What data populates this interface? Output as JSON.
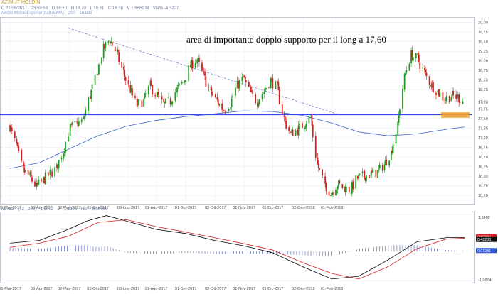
{
  "header": {
    "title": "AZIMUT HOLDIN",
    "line1": [
      "D 22/05/2017",
      "23:59:59",
      "O 18,50",
      "H 18,70",
      "L 18,31",
      "C 18,38",
      "V 1,6861 M",
      "Var% -4,3207"
    ],
    "line2": [
      "Medie Mobili Esponenziali (EMA)",
      "200",
      "16,831"
    ]
  },
  "annotation": "area di importante doppio supporto per il long a 17,60",
  "macd_header": [
    "MACD",
    "(12 , 200)",
    "1,3002",
    "9",
    "1,1306",
    "Hist",
    "0,16960"
  ],
  "colors": {
    "up": "#1f9a1f",
    "down": "#d42020",
    "support": "#2a52d8",
    "trend": "#5a6eb8",
    "ema": "#3a64c8",
    "zone": "#f0a030",
    "macd": "#000000",
    "signal": "#d42020",
    "hist": "#4a5aa8"
  },
  "chart_data": [
    {
      "type": "line",
      "chart_kind": "candlestick",
      "x_ticks": [
        "01-Mar-2017",
        "03-Apr-2017",
        "02-May-2017",
        "01-Giu-2017",
        "03-Lug-2017",
        "01-Ago-2017",
        "01-Set-2017",
        "02-Ott-2017",
        "01-Nov-2017",
        "01-Dic-2017",
        "02-Gen-2018",
        "01-Feb-2018"
      ],
      "y_ticks": [
        "20,00",
        "19,75",
        "19,50",
        "19,25",
        "19,00",
        "18,75",
        "18,50",
        "18,25",
        "17,75",
        "17,50",
        "17,25",
        "17,00",
        "16,75",
        "16,50",
        "16,25",
        "16,00",
        "15,75",
        "15,50"
      ],
      "ylim": [
        15.3,
        20.1
      ],
      "last_price_label": "17,93",
      "support_level": 17.6,
      "support_zone": [
        17.52,
        17.66
      ],
      "trendline": {
        "from": [
          "2017-05-01",
          19.85
        ],
        "to": [
          "2018-02-06",
          17.62
        ]
      },
      "series": [
        {
          "kind": "close",
          "points": [
            [
              "2017-03-01",
              17.3
            ],
            [
              "2017-03-08",
              16.8
            ],
            [
              "2017-03-15",
              16.15
            ],
            [
              "2017-03-22",
              16.0
            ],
            [
              "2017-03-29",
              15.72
            ],
            [
              "2017-04-05",
              15.9
            ],
            [
              "2017-04-12",
              16.05
            ],
            [
              "2017-04-19",
              16.2
            ],
            [
              "2017-04-26",
              16.65
            ],
            [
              "2017-05-03",
              17.25
            ],
            [
              "2017-05-10",
              17.35
            ],
            [
              "2017-05-17",
              17.45
            ],
            [
              "2017-05-24",
              18.1
            ],
            [
              "2017-05-31",
              18.6
            ],
            [
              "2017-06-07",
              19.3
            ],
            [
              "2017-06-14",
              19.55
            ],
            [
              "2017-06-21",
              19.2
            ],
            [
              "2017-06-28",
              18.7
            ],
            [
              "2017-07-05",
              18.25
            ],
            [
              "2017-07-12",
              17.85
            ],
            [
              "2017-07-19",
              17.95
            ],
            [
              "2017-07-26",
              18.35
            ],
            [
              "2017-08-02",
              18.1
            ],
            [
              "2017-08-09",
              17.85
            ],
            [
              "2017-08-16",
              17.95
            ],
            [
              "2017-08-23",
              18.25
            ],
            [
              "2017-08-30",
              18.45
            ],
            [
              "2017-09-06",
              18.85
            ],
            [
              "2017-09-13",
              19.05
            ],
            [
              "2017-09-20",
              18.6
            ],
            [
              "2017-09-27",
              18.2
            ],
            [
              "2017-10-04",
              17.95
            ],
            [
              "2017-10-11",
              17.72
            ],
            [
              "2017-10-18",
              17.9
            ],
            [
              "2017-10-25",
              18.35
            ],
            [
              "2017-11-01",
              18.55
            ],
            [
              "2017-11-08",
              18.15
            ],
            [
              "2017-11-15",
              17.95
            ],
            [
              "2017-11-22",
              18.2
            ],
            [
              "2017-11-29",
              18.5
            ],
            [
              "2017-12-06",
              18.3
            ],
            [
              "2017-12-13",
              17.5
            ],
            [
              "2017-12-20",
              17.1
            ],
            [
              "2017-12-27",
              17.2
            ],
            [
              "2018-01-03",
              17.35
            ],
            [
              "2018-01-10",
              17.55
            ],
            [
              "2018-01-17",
              16.3
            ],
            [
              "2018-01-24",
              15.85
            ],
            [
              "2018-01-31",
              15.55
            ],
            [
              "2018-02-07",
              15.8
            ],
            [
              "2018-02-14",
              15.7
            ],
            [
              "2018-02-21",
              15.65
            ],
            [
              "2018-02-28",
              15.95
            ],
            [
              "2018-03-07",
              16.0
            ],
            [
              "2018-03-14",
              16.05
            ],
            [
              "2018-03-21",
              16.1
            ],
            [
              "2018-03-28",
              16.3
            ],
            [
              "2018-04-04",
              16.6
            ],
            [
              "2018-04-11",
              17.3
            ],
            [
              "2018-04-18",
              18.55
            ],
            [
              "2018-04-25",
              19.15
            ],
            [
              "2018-05-02",
              19.05
            ],
            [
              "2018-05-09",
              18.7
            ],
            [
              "2018-05-16",
              18.4
            ],
            [
              "2018-05-23",
              18.2
            ],
            [
              "2018-05-30",
              18.0
            ],
            [
              "2018-06-06",
              18.1
            ],
            [
              "2018-06-13",
              18.05
            ],
            [
              "2018-06-20",
              17.93
            ]
          ]
        },
        {
          "kind": "ema",
          "name": "Medie Mobili Esponenziali (EMA)",
          "points": [
            [
              "2017-03-01",
              16.2
            ],
            [
              "2017-04-01",
              16.35
            ],
            [
              "2017-05-01",
              16.7
            ],
            [
              "2017-06-01",
              17.05
            ],
            [
              "2017-07-01",
              17.3
            ],
            [
              "2017-08-01",
              17.45
            ],
            [
              "2017-09-01",
              17.55
            ],
            [
              "2017-10-01",
              17.62
            ],
            [
              "2017-11-01",
              17.7
            ],
            [
              "2017-12-01",
              17.68
            ],
            [
              "2018-01-01",
              17.58
            ],
            [
              "2018-02-01",
              17.38
            ],
            [
              "2018-03-01",
              17.15
            ],
            [
              "2018-04-01",
              17.05
            ],
            [
              "2018-05-01",
              17.1
            ],
            [
              "2018-06-01",
              17.22
            ],
            [
              "2018-06-20",
              17.28
            ]
          ]
        }
      ]
    },
    {
      "type": "line",
      "title": "MACD",
      "x_ticks": [
        "01-Mar-2017",
        "03-Apr-2017",
        "02-May-2017",
        "01-Giu-2017",
        "03-Lug-2017",
        "01-Ago-2017",
        "01-Set-2017",
        "02-Ott-2017",
        "01-Nov-2017",
        "01-Dic-2017",
        "02-Gen-2018",
        "01-Feb-2018"
      ],
      "y_ticks": [
        "1,3402",
        "-1,0804"
      ],
      "value_labels": [
        "0,50564",
        "0,48203",
        "0,01281"
      ],
      "ylim": [
        -1.0804,
        1.3402
      ],
      "series": [
        {
          "name": "MACD",
          "points": [
            [
              "2017-03-01",
              0.3
            ],
            [
              "2017-04-01",
              0.4
            ],
            [
              "2017-05-01",
              0.8
            ],
            [
              "2017-05-20",
              1.1
            ],
            [
              "2017-06-10",
              1.3
            ],
            [
              "2017-07-01",
              1.1
            ],
            [
              "2017-08-01",
              0.8
            ],
            [
              "2017-09-01",
              0.65
            ],
            [
              "2017-10-01",
              0.4
            ],
            [
              "2017-11-01",
              0.2
            ],
            [
              "2017-12-01",
              -0.05
            ],
            [
              "2018-01-01",
              -0.55
            ],
            [
              "2018-02-01",
              -1.0
            ],
            [
              "2018-03-01",
              -0.9
            ],
            [
              "2018-04-01",
              -0.3
            ],
            [
              "2018-05-01",
              0.35
            ],
            [
              "2018-06-01",
              0.5
            ],
            [
              "2018-06-20",
              0.5
            ]
          ]
        },
        {
          "name": "Signal",
          "points": [
            [
              "2017-03-01",
              0.15
            ],
            [
              "2017-04-01",
              0.3
            ],
            [
              "2017-05-01",
              0.55
            ],
            [
              "2017-06-01",
              1.05
            ],
            [
              "2017-07-01",
              1.15
            ],
            [
              "2017-08-01",
              0.9
            ],
            [
              "2017-09-01",
              0.7
            ],
            [
              "2017-10-01",
              0.5
            ],
            [
              "2017-11-01",
              0.28
            ],
            [
              "2017-12-01",
              0.05
            ],
            [
              "2018-01-01",
              -0.4
            ],
            [
              "2018-02-01",
              -0.8
            ],
            [
              "2018-03-01",
              -1.0
            ],
            [
              "2018-04-01",
              -0.55
            ],
            [
              "2018-05-01",
              0.1
            ],
            [
              "2018-06-01",
              0.45
            ],
            [
              "2018-06-20",
              0.48
            ]
          ]
        }
      ]
    }
  ]
}
